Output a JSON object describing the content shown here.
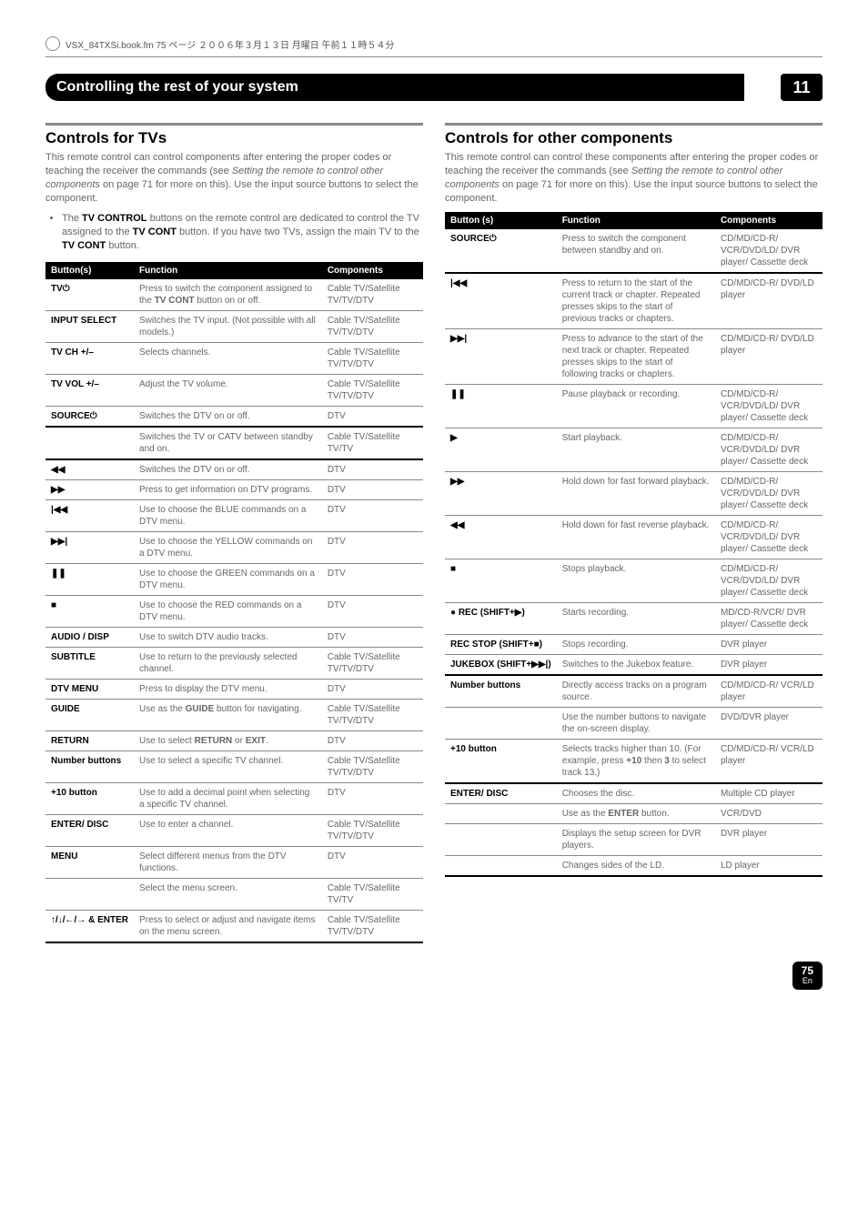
{
  "bookline": "VSX_84TXSi.book.fm 75 ページ ２００６年３月１３日  月曜日  午前１１時５４分",
  "chapter": {
    "title": "Controlling the rest of your system",
    "number": "11"
  },
  "left": {
    "heading": "Controls for TVs",
    "intro_pre": "This remote control can control components after entering the proper codes or teaching the receiver the commands (see ",
    "intro_em": "Setting the remote to control other components",
    "intro_post": " on page 71 for more on this). Use the input source buttons to select the component.",
    "bullet_pre": "The ",
    "bullet_b1": "TV CONTROL",
    "bullet_mid": " buttons on the remote control are dedicated to control the TV assigned to the ",
    "bullet_b2": "TV CONT",
    "bullet_mid2": " button. If you have two TVs, assign the main TV to the ",
    "bullet_b3": "TV CONT",
    "bullet_end": " button.",
    "cols": [
      "Button(s)",
      "Function",
      "Components"
    ],
    "rows": [
      [
        "TV⏻",
        "Press to switch the component assigned to the <b>TV CONT</b> button on or off.",
        "Cable TV/Satellite TV/TV/DTV"
      ],
      [
        "INPUT SELECT",
        "Switches the TV input. (Not possible with all models.)",
        "Cable TV/Satellite TV/TV/DTV"
      ],
      [
        "TV CH +/–",
        "Selects channels.",
        "Cable TV/Satellite TV/TV/DTV"
      ],
      [
        "TV VOL +/–",
        "Adjust the TV volume.",
        "Cable TV/Satellite TV/TV/DTV"
      ],
      [
        "SOURCE⏻",
        "Switches the DTV on or off.",
        "DTV"
      ],
      [
        "",
        "Switches the TV or CATV between standby and on.",
        "Cable TV/Satellite TV/TV"
      ],
      [
        "◀◀",
        "Switches the DTV on or off.",
        "DTV"
      ],
      [
        "▶▶",
        "Press to get information on DTV programs.",
        "DTV"
      ],
      [
        "|◀◀",
        "Use to choose the BLUE commands on a DTV menu.",
        "DTV"
      ],
      [
        "▶▶|",
        "Use to choose the YELLOW commands on a DTV menu.",
        "DTV"
      ],
      [
        "❚❚",
        "Use to choose the GREEN commands on a DTV menu.",
        "DTV"
      ],
      [
        "■",
        "Use to choose the RED commands on a DTV menu.",
        "DTV"
      ],
      [
        "AUDIO / DISP",
        "Use to switch DTV audio tracks.",
        "DTV"
      ],
      [
        "SUBTITLE",
        "Use to return to the previously selected channel.",
        "Cable TV/Satellite TV/TV/DTV"
      ],
      [
        "DTV MENU",
        "Press to display the DTV menu.",
        "DTV"
      ],
      [
        "GUIDE",
        "Use as the <b>GUIDE</b> button for navigating.",
        "Cable TV/Satellite TV/TV/DTV"
      ],
      [
        "RETURN",
        "Use to select <b>RETURN</b> or <b>EXIT</b>.",
        "DTV"
      ],
      [
        "Number buttons",
        "Use to select a specific TV channel.",
        "Cable TV/Satellite TV/TV/DTV"
      ],
      [
        "+10 button",
        "Use to add a decimal point when selecting a specific TV channel.",
        "DTV"
      ],
      [
        "ENTER/ DISC",
        "Use to enter a channel.",
        "Cable TV/Satellite TV/TV/DTV"
      ],
      [
        "MENU",
        "Select different menus from the DTV functions.",
        "DTV"
      ],
      [
        "",
        "Select the menu screen.",
        "Cable TV/Satellite TV/TV"
      ],
      [
        "↑/↓/←/→ & ENTER",
        "Press to select or adjust and navigate items on the menu screen.",
        "Cable TV/Satellite TV/TV/DTV"
      ]
    ],
    "heavy_after": [
      4,
      5,
      22
    ]
  },
  "right": {
    "heading": "Controls for other components",
    "intro_pre": "This remote control can control these components after entering the proper codes or teaching the receiver the commands (see ",
    "intro_em": "Setting the remote to control other components",
    "intro_post": " on page 71 for more on this). Use the input source buttons to select the component.",
    "cols": [
      "Button (s)",
      "Function",
      "Components"
    ],
    "rows": [
      [
        "SOURCE⏻",
        "Press to switch the component between standby and on.",
        "CD/MD/CD-R/ VCR/DVD/LD/ DVR player/ Cassette deck"
      ],
      [
        "|◀◀",
        "Press to return to the start of the current track or chapter. Repeated presses skips to the start of previous tracks or chapters.",
        "CD/MD/CD-R/ DVD/LD player"
      ],
      [
        "▶▶|",
        "Press to advance to the start of the next track or chapter. Repeated presses skips to the start of following tracks or chapters.",
        "CD/MD/CD-R/ DVD/LD player"
      ],
      [
        "❚❚",
        "Pause playback or recording.",
        "CD/MD/CD-R/ VCR/DVD/LD/ DVR player/ Cassette deck"
      ],
      [
        "▶",
        "Start playback.",
        "CD/MD/CD-R/ VCR/DVD/LD/ DVR player/ Cassette deck"
      ],
      [
        "▶▶",
        "Hold down for fast forward playback.",
        "CD/MD/CD-R/ VCR/DVD/LD/ DVR player/ Cassette deck"
      ],
      [
        "◀◀",
        "Hold down for fast reverse playback.",
        "CD/MD/CD-R/ VCR/DVD/LD/ DVR player/ Cassette deck"
      ],
      [
        "■",
        "Stops playback.",
        "CD/MD/CD-R/ VCR/DVD/LD/ DVR player/ Cassette deck"
      ],
      [
        "● REC (SHIFT+▶)",
        "Starts recording.",
        "MD/CD-R/VCR/ DVR player/ Cassette deck"
      ],
      [
        "REC STOP (SHIFT+■)",
        "Stops recording.",
        "DVR player"
      ],
      [
        "JUKEBOX (SHIFT+▶▶|)",
        "Switches to the Jukebox feature.",
        "DVR player"
      ],
      [
        "Number buttons",
        "Directly access tracks on a program source.",
        "CD/MD/CD-R/ VCR/LD player"
      ],
      [
        "",
        "Use the number buttons to navigate the on-screen display.",
        "DVD/DVR player"
      ],
      [
        "+10 button",
        "Selects tracks higher than 10. (For example, press <b>+10</b> then <b>3</b> to select track 13.)",
        "CD/MD/CD-R/ VCR/LD player"
      ],
      [
        "ENTER/ DISC",
        "Chooses the disc.",
        "Multiple CD player"
      ],
      [
        "",
        "Use as the <b>ENTER</b> button.",
        "VCR/DVD"
      ],
      [
        "",
        "Displays the setup screen for DVR players.",
        "DVR player"
      ],
      [
        "",
        "Changes sides of the LD.",
        "LD player"
      ]
    ],
    "heavy_after": [
      0,
      10,
      13,
      17
    ]
  },
  "pagenum": "75",
  "pagelang": "En"
}
